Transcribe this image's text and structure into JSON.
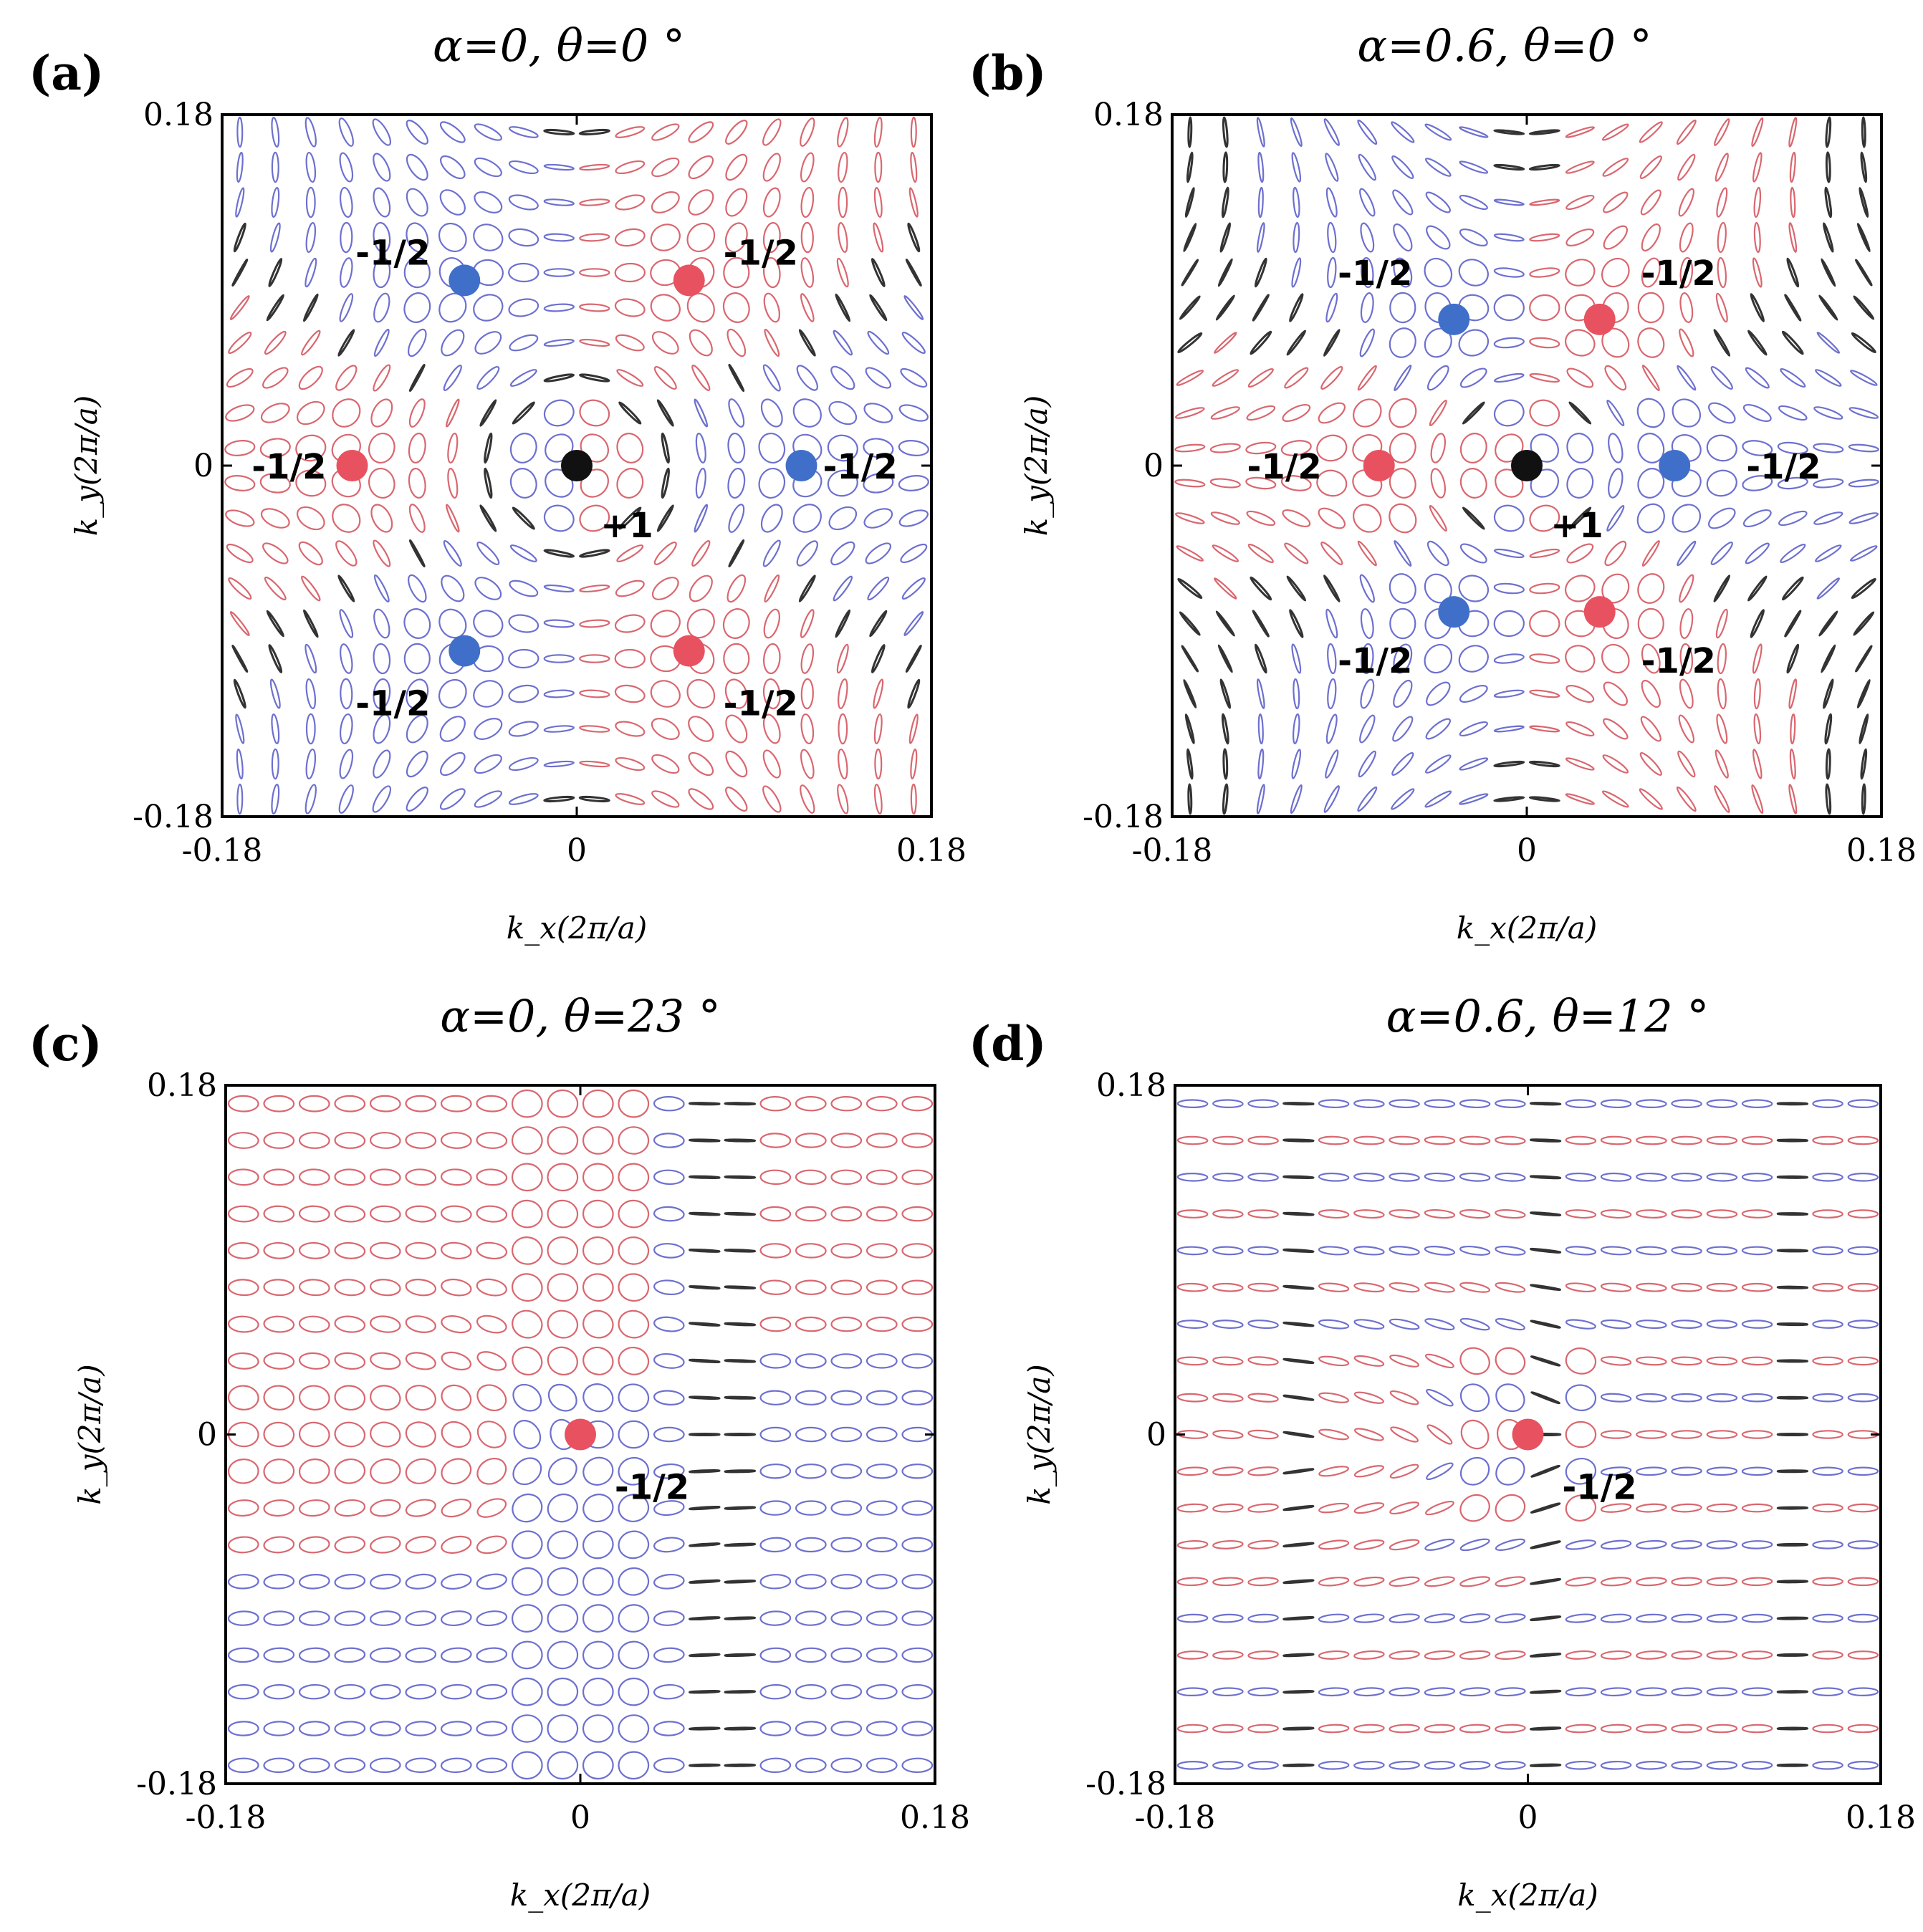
{
  "colors": {
    "red": "#e8515f",
    "blue": "#3f6fc9",
    "black": "#111111",
    "ellipse_red": "#d9676f",
    "ellipse_blue": "#6d70cf",
    "ellipse_black": "#333333"
  },
  "chart_data": [
    {
      "type": "vector-field",
      "panel_label": "(a)",
      "title": "α=0, θ=0 °",
      "xlabel": "k_x(2π/a)",
      "ylabel": "k_y(2π/a)",
      "xlim": [
        -0.18,
        0.18
      ],
      "ylim": [
        -0.18,
        0.18
      ],
      "xticks": [
        "-0.18",
        "0",
        "0.18"
      ],
      "yticks": [
        "0.18",
        "0",
        "-0.18"
      ],
      "singularities": [
        {
          "x": -0.114,
          "y": 0.0,
          "color": "red",
          "charge": "-1/2"
        },
        {
          "x": 0.0,
          "y": 0.0,
          "color": "black",
          "charge": "+1"
        },
        {
          "x": 0.114,
          "y": 0.0,
          "color": "blue",
          "charge": "-1/2"
        },
        {
          "x": -0.057,
          "y": 0.095,
          "color": "blue",
          "charge": "-1/2"
        },
        {
          "x": 0.057,
          "y": 0.095,
          "color": "red",
          "charge": "-1/2"
        },
        {
          "x": -0.057,
          "y": -0.095,
          "color": "blue",
          "charge": "-1/2"
        },
        {
          "x": 0.057,
          "y": -0.095,
          "color": "red",
          "charge": "-1/2"
        }
      ]
    },
    {
      "type": "vector-field",
      "panel_label": "(b)",
      "title": "α=0.6, θ=0 °",
      "xlabel": "k_x(2π/a)",
      "ylabel": "k_y(2π/a)",
      "xlim": [
        -0.18,
        0.18
      ],
      "ylim": [
        -0.18,
        0.18
      ],
      "xticks": [
        "-0.18",
        "0",
        "0.18"
      ],
      "yticks": [
        "0.18",
        "0",
        "-0.18"
      ],
      "singularities": [
        {
          "x": -0.075,
          "y": 0.0,
          "color": "red",
          "charge": "-1/2"
        },
        {
          "x": 0.0,
          "y": 0.0,
          "color": "black",
          "charge": "+1"
        },
        {
          "x": 0.075,
          "y": 0.0,
          "color": "blue",
          "charge": "-1/2"
        },
        {
          "x": -0.037,
          "y": 0.075,
          "color": "blue",
          "charge": "-1/2"
        },
        {
          "x": 0.037,
          "y": 0.075,
          "color": "red",
          "charge": "-1/2"
        },
        {
          "x": -0.037,
          "y": -0.075,
          "color": "blue",
          "charge": "-1/2"
        },
        {
          "x": 0.037,
          "y": -0.075,
          "color": "red",
          "charge": "-1/2"
        }
      ]
    },
    {
      "type": "vector-field",
      "panel_label": "(c)",
      "title": "α=0, θ=23 °",
      "xlabel": "k_x(2π/a)",
      "ylabel": "k_y(2π/a)",
      "xlim": [
        -0.18,
        0.18
      ],
      "ylim": [
        -0.18,
        0.18
      ],
      "xticks": [
        "-0.18",
        "0",
        "0.18"
      ],
      "yticks": [
        "0.18",
        "0",
        "-0.18"
      ],
      "singularities": [
        {
          "x": 0.0,
          "y": 0.0,
          "color": "red",
          "charge": "-1/2"
        }
      ]
    },
    {
      "type": "vector-field",
      "panel_label": "(d)",
      "title": "α=0.6, θ=12 °",
      "xlabel": "k_x(2π/a)",
      "ylabel": "k_y(2π/a)",
      "xlim": [
        -0.18,
        0.18
      ],
      "ylim": [
        -0.18,
        0.18
      ],
      "xticks": [
        "-0.18",
        "0",
        "0.18"
      ],
      "yticks": [
        "0.18",
        "0",
        "-0.18"
      ],
      "singularities": [
        {
          "x": 0.0,
          "y": 0.0,
          "color": "red",
          "charge": "-1/2"
        }
      ]
    }
  ]
}
